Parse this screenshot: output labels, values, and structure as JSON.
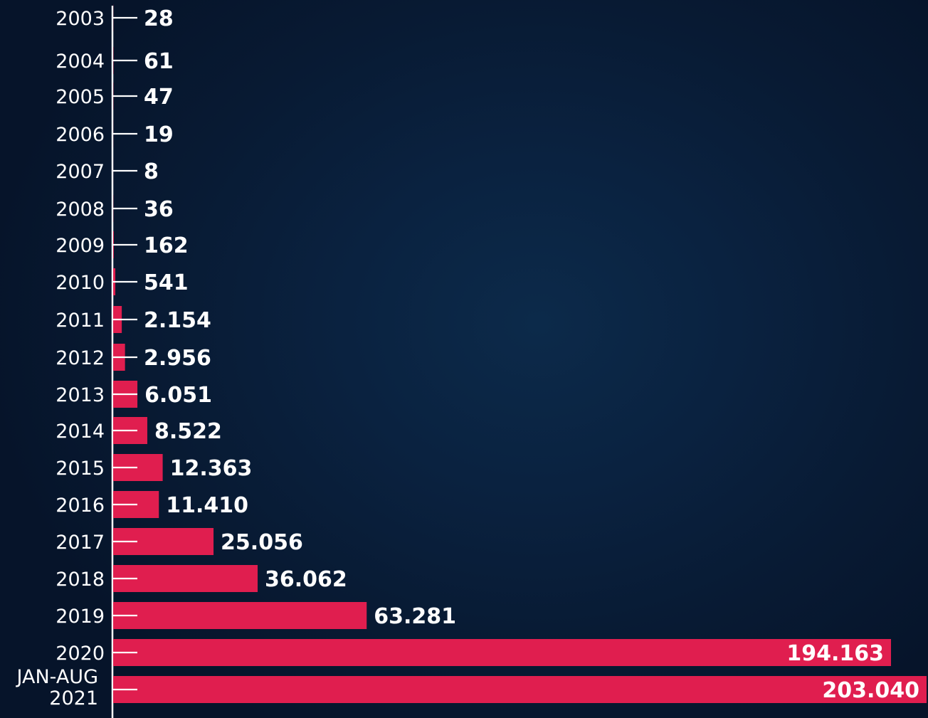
{
  "colors": {
    "background": "#0a2240",
    "bar": "#e01e4f",
    "text": "#ffffff",
    "axis": "#ffffff"
  },
  "chart_data": {
    "type": "bar",
    "orientation": "horizontal",
    "grid": false,
    "categories": [
      "2003",
      "2004",
      "2005",
      "2006",
      "2007",
      "2008",
      "2009",
      "2010",
      "2011",
      "2012",
      "2013",
      "2014",
      "2015",
      "2016",
      "2017",
      "2018",
      "2019",
      "2020",
      "JAN-AUG 2021"
    ],
    "category_lines": [
      [
        "2003"
      ],
      [
        "2004"
      ],
      [
        "2005"
      ],
      [
        "2006"
      ],
      [
        "2007"
      ],
      [
        "2008"
      ],
      [
        "2009"
      ],
      [
        "2010"
      ],
      [
        "2011"
      ],
      [
        "2012"
      ],
      [
        "2013"
      ],
      [
        "2014"
      ],
      [
        "2015"
      ],
      [
        "2016"
      ],
      [
        "2017"
      ],
      [
        "2018"
      ],
      [
        "2019"
      ],
      [
        "2020"
      ],
      [
        "JAN-AUG",
        "2021"
      ]
    ],
    "values": [
      28,
      61,
      47,
      19,
      8,
      36,
      162,
      541,
      2154,
      2956,
      6051,
      8522,
      12363,
      11410,
      25056,
      36062,
      63281,
      194163,
      203040
    ],
    "labels": [
      "28",
      "61",
      "47",
      "19",
      "8",
      "36",
      "162",
      "541",
      "2.154",
      "2.956",
      "6.051",
      "8.522",
      "12.363",
      "11.410",
      "25.056",
      "36.062",
      "63.281",
      "194.163",
      "203.040"
    ],
    "xlim": [
      0,
      203040
    ]
  }
}
